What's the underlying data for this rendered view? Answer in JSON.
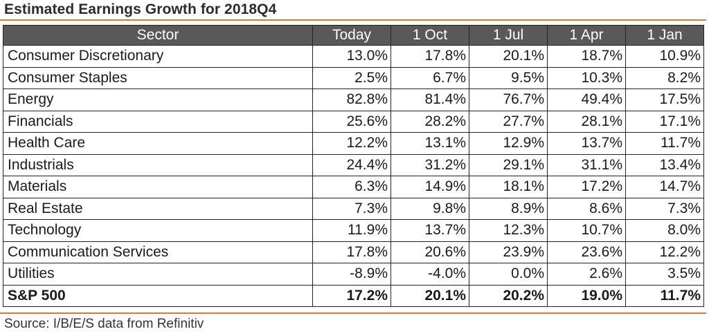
{
  "title": "Estimated Earnings Growth for  2018Q4",
  "source": "Source: I/B/E/S data from Refinitiv",
  "colors": {
    "accent_rule": "#e8762b",
    "header_bg": "#595959",
    "header_text": "#ffffff"
  },
  "chart_data": {
    "type": "table",
    "title": "Estimated Earnings Growth for  2018Q4",
    "columns": [
      "Sector",
      "Today",
      "1 Oct",
      "1 Jul",
      "1 Apr",
      "1 Jan"
    ],
    "rows": [
      {
        "sector": "Consumer Discretionary",
        "values": [
          "13.0%",
          "17.8%",
          "20.1%",
          "18.7%",
          "10.9%"
        ]
      },
      {
        "sector": "Consumer Staples",
        "values": [
          "2.5%",
          "6.7%",
          "9.5%",
          "10.3%",
          "8.2%"
        ]
      },
      {
        "sector": "Energy",
        "values": [
          "82.8%",
          "81.4%",
          "76.7%",
          "49.4%",
          "17.5%"
        ]
      },
      {
        "sector": "Financials",
        "values": [
          "25.6%",
          "28.2%",
          "27.7%",
          "28.1%",
          "17.1%"
        ]
      },
      {
        "sector": "Health Care",
        "values": [
          "12.2%",
          "13.1%",
          "12.9%",
          "13.7%",
          "11.7%"
        ]
      },
      {
        "sector": "Industrials",
        "values": [
          "24.4%",
          "31.2%",
          "29.1%",
          "31.1%",
          "13.4%"
        ]
      },
      {
        "sector": "Materials",
        "values": [
          "6.3%",
          "14.9%",
          "18.1%",
          "17.2%",
          "14.7%"
        ]
      },
      {
        "sector": "Real Estate",
        "values": [
          "7.3%",
          "9.8%",
          "8.9%",
          "8.6%",
          "7.3%"
        ]
      },
      {
        "sector": "Technology",
        "values": [
          "11.9%",
          "13.7%",
          "12.3%",
          "10.7%",
          "8.0%"
        ]
      },
      {
        "sector": "Communication Services",
        "values": [
          "17.8%",
          "20.6%",
          "23.9%",
          "23.6%",
          "12.2%"
        ]
      },
      {
        "sector": "Utilities",
        "values": [
          "-8.9%",
          "-4.0%",
          "0.0%",
          "2.6%",
          "3.5%"
        ]
      }
    ],
    "total": {
      "sector": "S&P 500",
      "values": [
        "17.2%",
        "20.1%",
        "20.2%",
        "19.0%",
        "11.7%"
      ]
    }
  }
}
